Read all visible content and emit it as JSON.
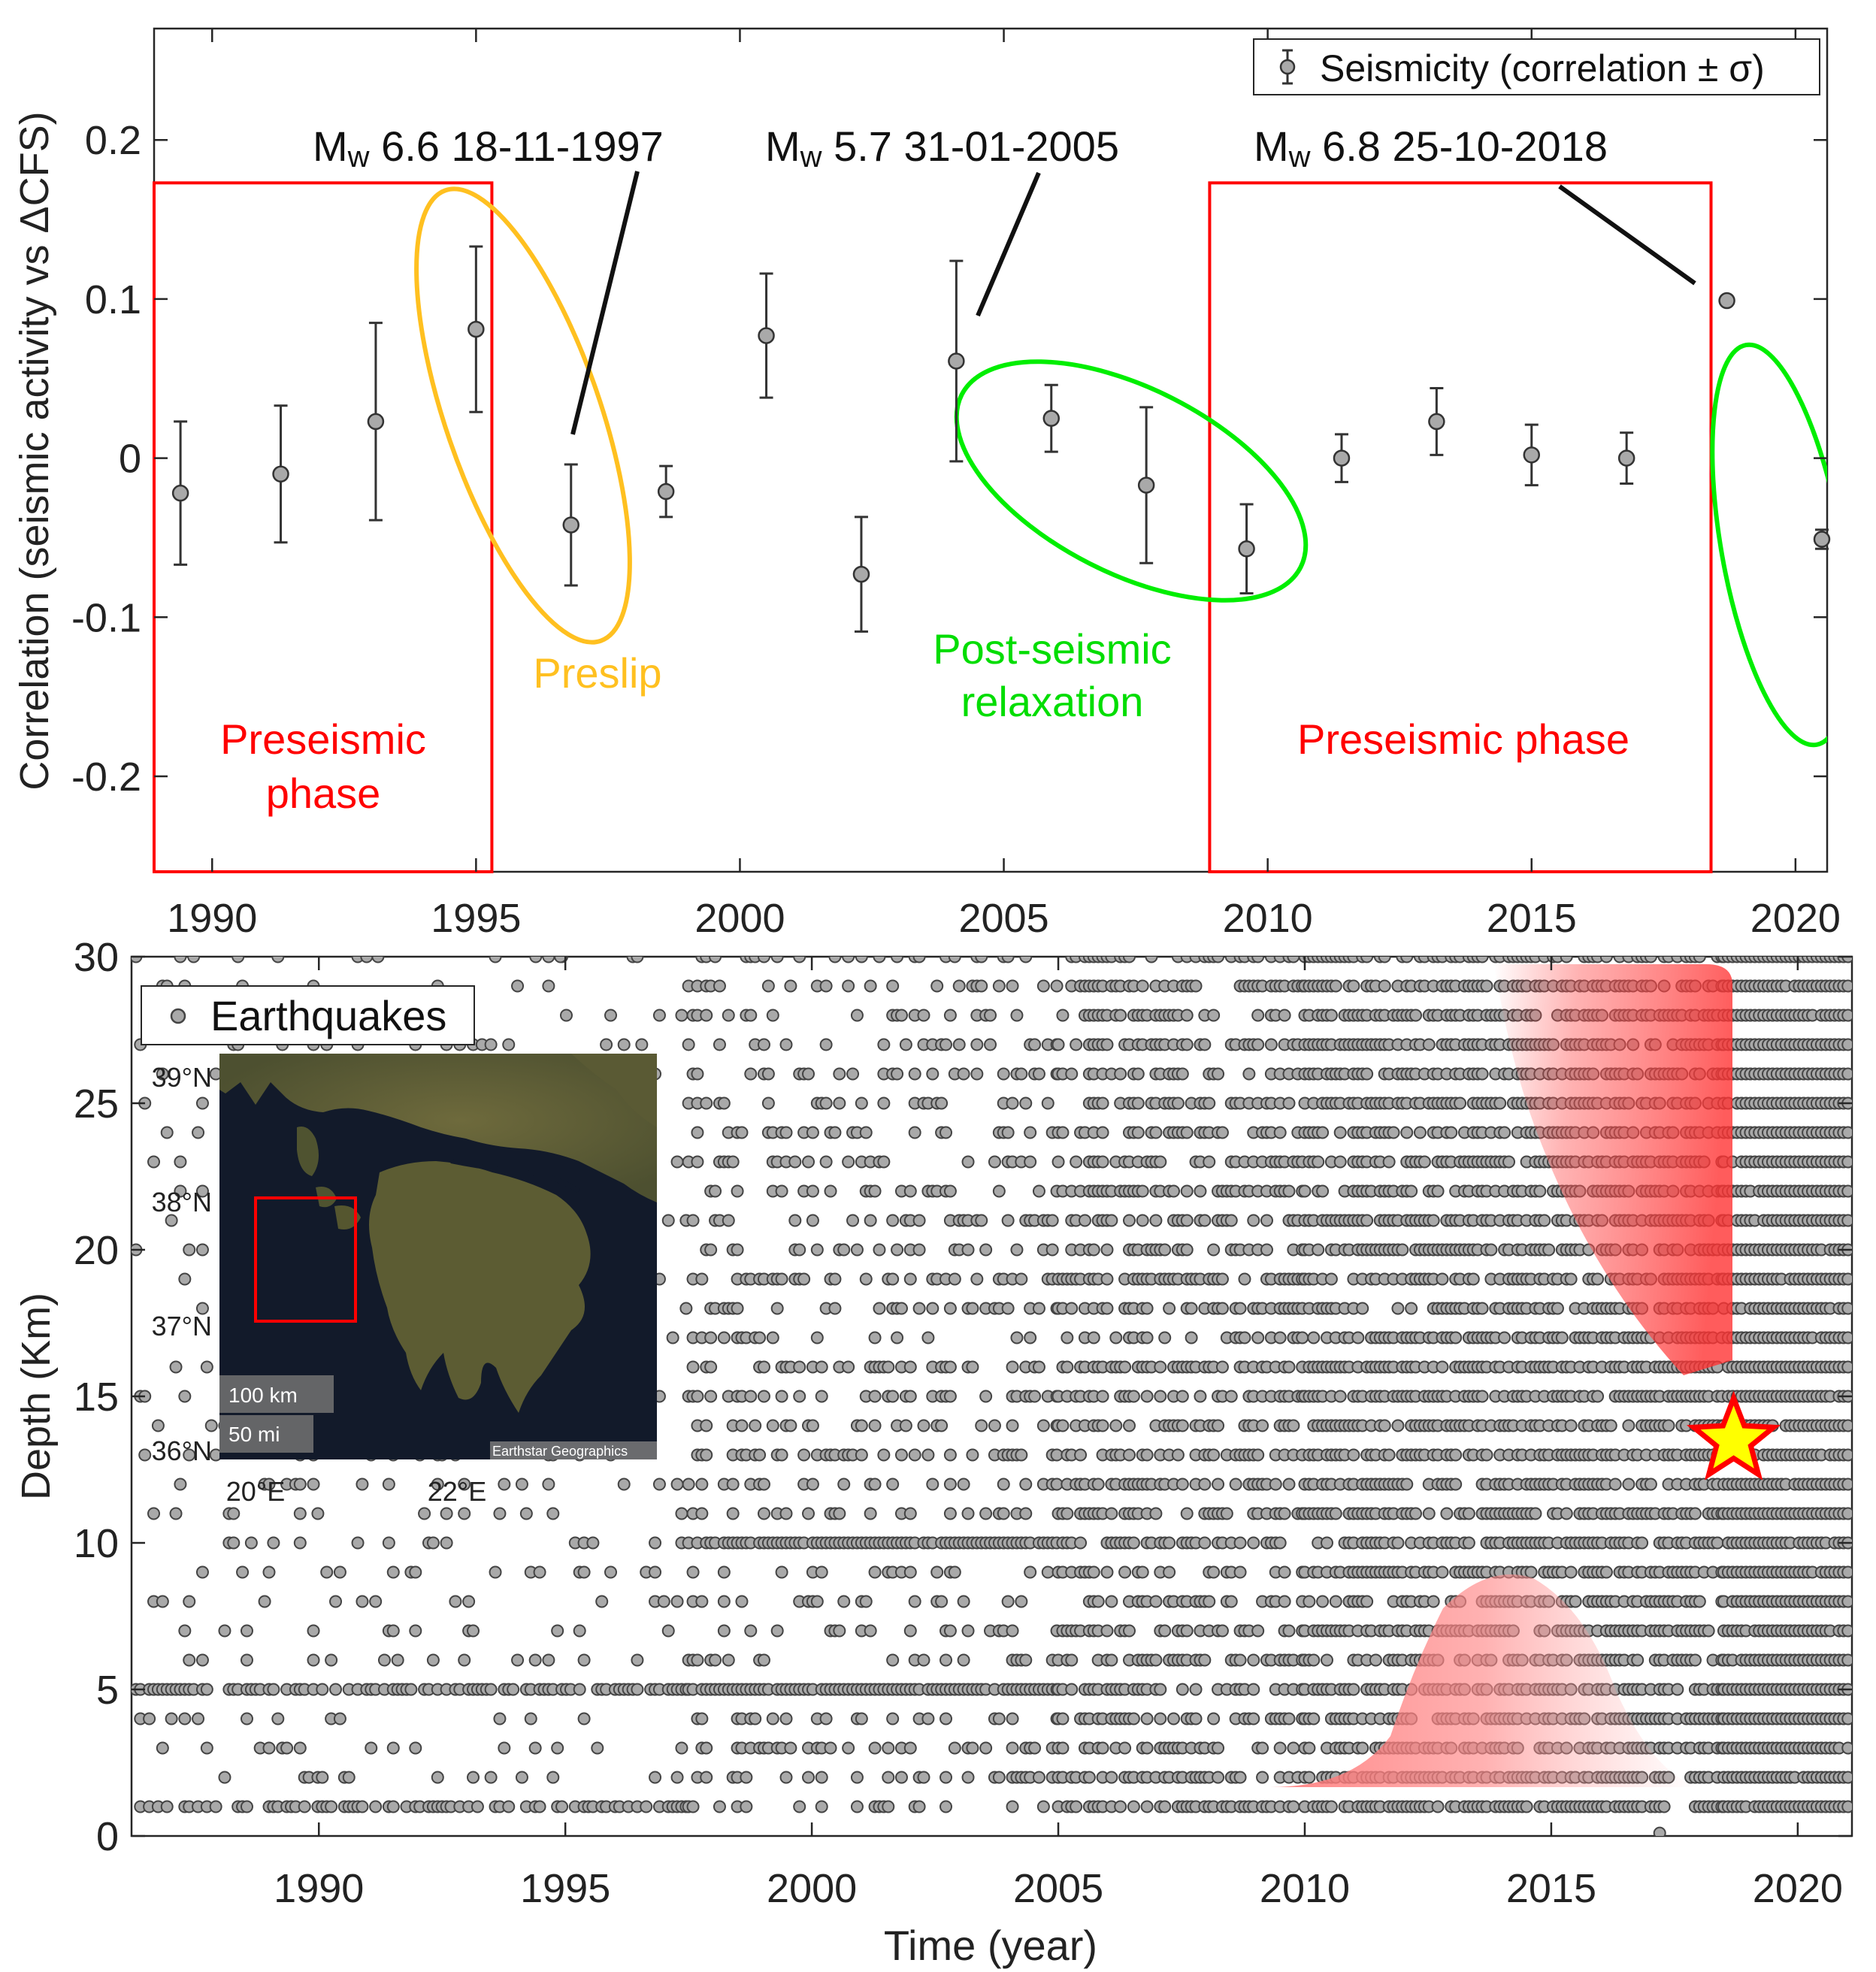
{
  "chart_data": [
    {
      "type": "scatter",
      "panel": "top",
      "ylabel": "Correlation (seismic activity vs ΔCFS)",
      "xlim": [
        1988.9,
        2020.6
      ],
      "ylim": [
        -0.26,
        0.27
      ],
      "xticks": [
        1990,
        1995,
        2000,
        2005,
        2010,
        2015,
        2020
      ],
      "yticks": [
        -0.2,
        -0.1,
        0,
        0.1,
        0.2
      ],
      "ytick_labels": [
        "-0.2",
        "-0.1",
        "0",
        "0.1",
        "0.2"
      ],
      "grid": false,
      "legend": {
        "position": "top-right",
        "entries": [
          "Seismicity (correlation ± σ)"
        ]
      },
      "series": [
        {
          "name": "Seismicity (correlation ± σ)",
          "points": [
            {
              "x": 1989.4,
              "y": -0.022,
              "err": 0.045
            },
            {
              "x": 1991.3,
              "y": -0.01,
              "err": 0.043
            },
            {
              "x": 1993.1,
              "y": 0.023,
              "err": 0.062
            },
            {
              "x": 1995.0,
              "y": 0.081,
              "err": 0.052
            },
            {
              "x": 1996.8,
              "y": -0.042,
              "err": 0.038
            },
            {
              "x": 1998.6,
              "y": -0.021,
              "err": 0.016
            },
            {
              "x": 2000.5,
              "y": 0.077,
              "err": 0.039
            },
            {
              "x": 2002.3,
              "y": -0.073,
              "err": 0.036
            },
            {
              "x": 2004.1,
              "y": 0.061,
              "err": 0.063
            },
            {
              "x": 2005.9,
              "y": 0.025,
              "err": 0.021
            },
            {
              "x": 2007.7,
              "y": -0.017,
              "err": 0.049
            },
            {
              "x": 2009.6,
              "y": -0.057,
              "err": 0.028
            },
            {
              "x": 2011.4,
              "y": 0.0,
              "err": 0.015
            },
            {
              "x": 2013.2,
              "y": 0.023,
              "err": 0.021
            },
            {
              "x": 2015.0,
              "y": 0.002,
              "err": 0.019
            },
            {
              "x": 2016.8,
              "y": 0.0,
              "err": 0.016
            },
            {
              "x": 2018.7,
              "y": 0.099,
              "err": 0.0
            },
            {
              "x": 2020.5,
              "y": -0.051,
              "err": 0.006
            }
          ]
        }
      ],
      "annotations": [
        {
          "text": "Mw 6.6 18-11-1997",
          "mag_prefix": "M",
          "mag_sub": "w",
          "rest": " 6.6 18-11-1997"
        },
        {
          "text": "Mw 5.7 31-01-2005",
          "mag_prefix": "M",
          "mag_sub": "w",
          "rest": " 5.7 31-01-2005"
        },
        {
          "text": "Mw 6.8 25-10-2018",
          "mag_prefix": "M",
          "mag_sub": "w",
          "rest": " 6.8 25-10-2018"
        },
        {
          "text": "Preslip"
        },
        {
          "text": "Post-seismic"
        },
        {
          "text": "relaxation"
        },
        {
          "text": "Preseismic"
        },
        {
          "text": "phase"
        },
        {
          "text": "Preseismic phase"
        }
      ],
      "regions": [
        {
          "label": "Preseismic phase (1989–1995)",
          "x0": 1988.9,
          "x1": 1995.3,
          "y0": -0.26,
          "y1": 0.173,
          "color": "#ff0000"
        },
        {
          "label": "Preseismic phase (2009–2018)",
          "x0": 2008.9,
          "x1": 2018.4,
          "y0": -0.26,
          "y1": 0.173,
          "color": "#ff0000"
        }
      ],
      "colors": {
        "preseismic": "#ff0000",
        "preslip": "#ffc020",
        "postseismic": "#00ee00",
        "marker": "#a9a9a9"
      }
    },
    {
      "type": "scatter",
      "panel": "bottom",
      "xlabel": "Time (year)",
      "ylabel": "Depth (Km)",
      "xlim": [
        1986.2,
        2021.1
      ],
      "ylim": [
        0,
        30
      ],
      "xticks": [
        1990,
        1995,
        2000,
        2005,
        2010,
        2015,
        2020
      ],
      "yticks": [
        0,
        5,
        10,
        15,
        20,
        25,
        30
      ],
      "grid": false,
      "legend": {
        "position": "top-left",
        "entries": [
          "Earthquakes"
        ]
      },
      "series": [
        {
          "name": "Earthquakes",
          "marker": "circle",
          "color": "#a9a9a9",
          "density_by_period": [
            {
              "from": 1986.2,
              "to": 1997.5,
              "rate": 0.1,
              "dense_depths": [
                1,
                5
              ]
            },
            {
              "from": 1997.5,
              "to": 2005.0,
              "rate": 0.25,
              "dense_depths": [
                5,
                10
              ]
            },
            {
              "from": 2005.0,
              "to": 2010.0,
              "rate": 0.5,
              "dense_depths": []
            },
            {
              "from": 2010.0,
              "to": 2018.5,
              "rate": 0.7,
              "dense_depths": []
            },
            {
              "from": 2018.5,
              "to": 2021.1,
              "rate": 0.95,
              "dense_depths": []
            }
          ],
          "depth_range": [
            1,
            30
          ],
          "notable_points": [
            {
              "x": 2017.2,
              "y": 0.1
            },
            {
              "x": 1991.2,
              "y": 30
            },
            {
              "x": 1994.4,
              "y": 30
            },
            {
              "x": 1994.9,
              "y": 30
            }
          ]
        }
      ],
      "highlights": [
        {
          "shape": "star",
          "x": 2018.7,
          "y": 13.5,
          "fill": "#ffff00",
          "stroke": "#ff0000",
          "meaning": "Mw 6.8 25-10-2018"
        }
      ],
      "inset_map": {
        "lat_labels": [
          "39°N",
          "38°N",
          "37°N",
          "36°N"
        ],
        "lon_labels": [
          "20°E",
          "22°E"
        ],
        "scale_labels": [
          "100 km",
          "50 mi"
        ],
        "attribution": "Earthstar Geographics",
        "land_color": "#5b5a35",
        "sea_color": "#121a2a",
        "box_color": "#ff0000"
      }
    }
  ]
}
